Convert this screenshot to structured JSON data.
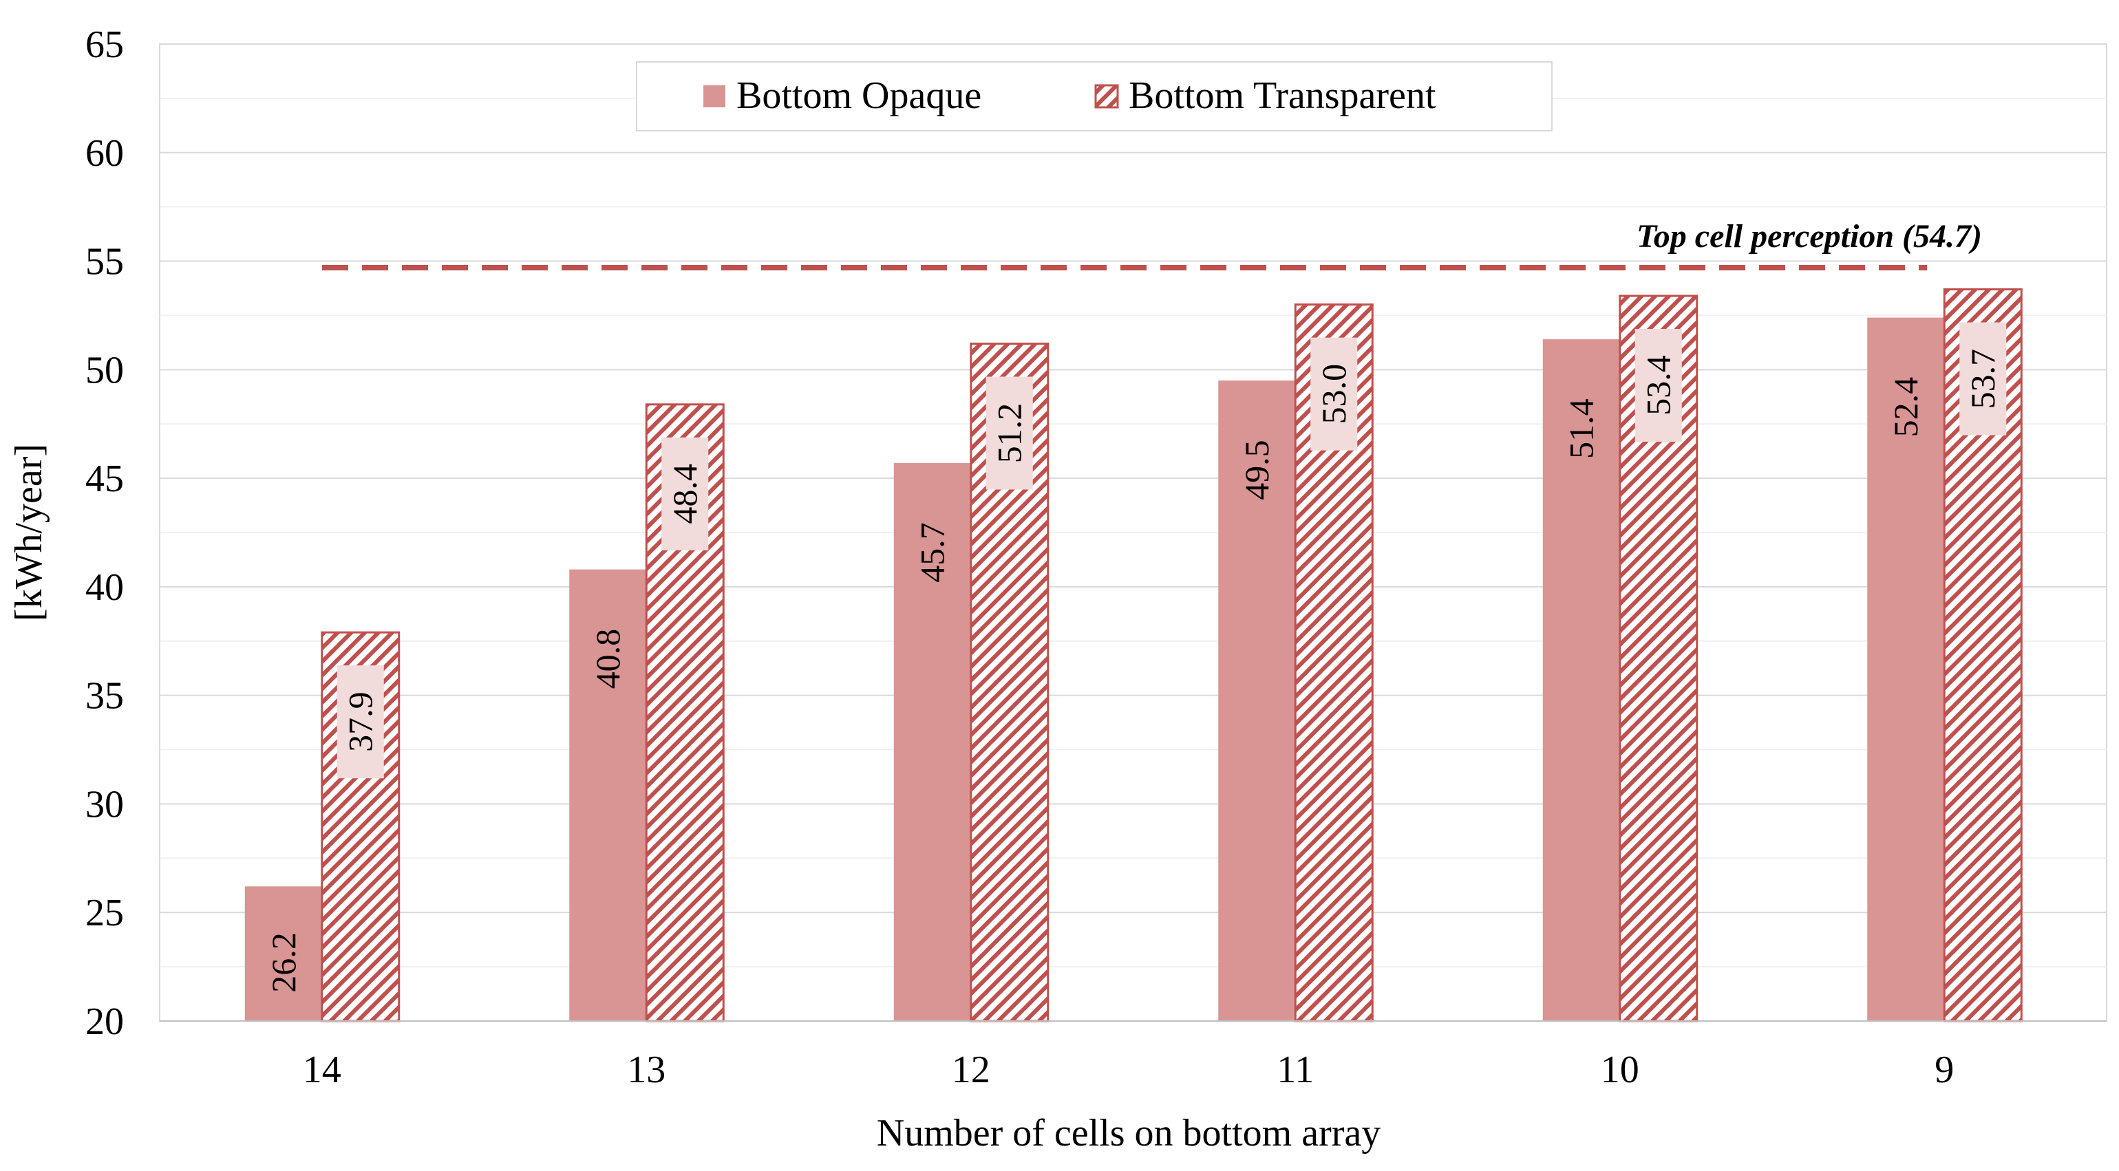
{
  "chart_data": {
    "type": "bar",
    "title": "",
    "xlabel": "Number of cells on bottom array",
    "ylabel": "[kWh/year]",
    "categories": [
      "14",
      "13",
      "12",
      "11",
      "10",
      "9"
    ],
    "series": [
      {
        "name": "Bottom Opaque",
        "values": [
          26.2,
          40.8,
          45.7,
          49.5,
          51.4,
          52.4
        ],
        "labels": [
          "26.2",
          "40.8",
          "45.7",
          "49.5",
          "51.4",
          "52.4"
        ],
        "style": "solid"
      },
      {
        "name": "Bottom Transparent",
        "values": [
          37.9,
          48.4,
          51.2,
          53.0,
          53.4,
          53.7
        ],
        "labels": [
          "37.9",
          "48.4",
          "51.2",
          "53.0",
          "53.4",
          "53.7"
        ],
        "style": "hatched"
      }
    ],
    "ylim": [
      20,
      65
    ],
    "yticks": [
      20,
      25,
      30,
      35,
      40,
      45,
      50,
      55,
      60,
      65
    ],
    "minor_grid_step": 2.5,
    "grid": true,
    "legend_position": "top-center",
    "reference_line": {
      "value": 54.7,
      "label": "Top cell perception (54.7)",
      "style": "dashed"
    }
  },
  "colors": {
    "opaque_fill": "#d99594",
    "transparent_stroke": "#c0504d",
    "hatch_bg": "#ffffff",
    "label_bg": "#f2dcdb",
    "reference_line": "#c0504d",
    "grid_major": "#d9d9d9",
    "grid_minor": "#f0f0f0",
    "axis": "#bfbfbf"
  }
}
